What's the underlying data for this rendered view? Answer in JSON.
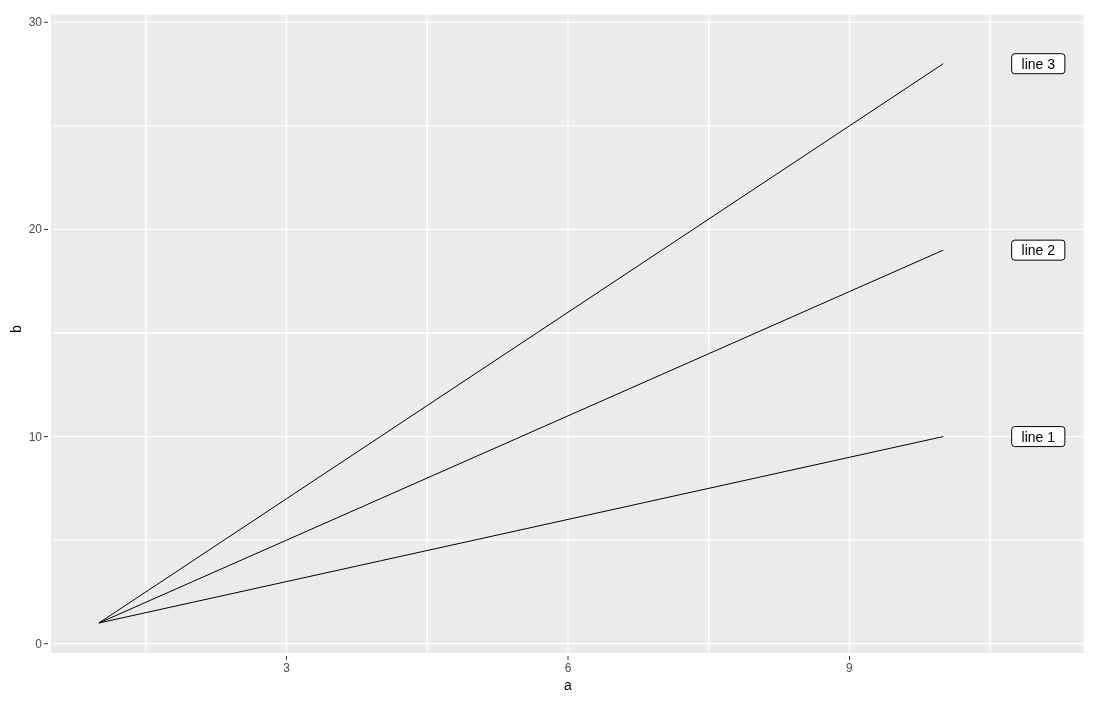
{
  "chart_data": {
    "type": "line",
    "xlabel": "a",
    "ylabel": "b",
    "x": [
      1,
      2,
      3,
      4,
      5,
      6,
      7,
      8,
      9,
      10
    ],
    "series": [
      {
        "name": "line 1",
        "color": "#000000",
        "values": [
          1,
          2,
          3,
          4,
          5,
          6,
          7,
          8,
          9,
          10
        ]
      },
      {
        "name": "line 2",
        "color": "#000000",
        "values": [
          1,
          3,
          5,
          7,
          9,
          11,
          13,
          15,
          17,
          19
        ]
      },
      {
        "name": "line 3",
        "color": "#000000",
        "values": [
          1,
          4,
          7,
          10,
          13,
          16,
          19,
          22,
          25,
          28
        ]
      }
    ],
    "xlim": [
      0.5,
      11.5
    ],
    "xticks": [
      {
        "value": 1.5,
        "label": null
      },
      3,
      {
        "value": 4.5,
        "label": null
      },
      6,
      {
        "value": 7.5,
        "label": null
      },
      9,
      {
        "value": 10.5,
        "label": null
      }
    ],
    "ylim": [
      -0.4,
      30.4
    ],
    "yticks": [
      0,
      {
        "value": 5,
        "label": null
      },
      10,
      {
        "value": 15,
        "label": null
      },
      20,
      {
        "value": 25,
        "label": null
      },
      30
    ],
    "grid": true,
    "line_style": "solid",
    "marker": "none"
  }
}
